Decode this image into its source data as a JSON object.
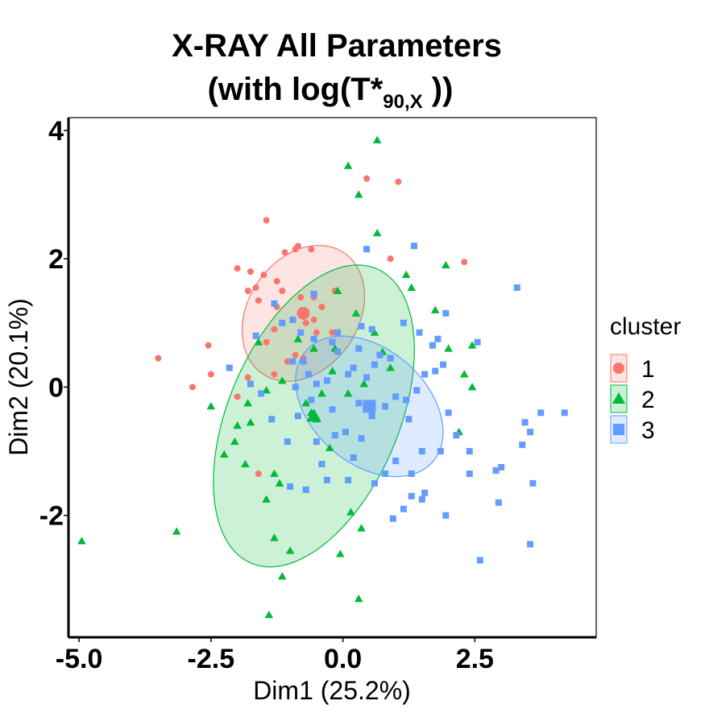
{
  "chart_data": {
    "type": "scatter",
    "title_line1": "X-RAY All Parameters",
    "title_line2_prefix": "(with log(T*",
    "title_line2_sub": "90,X",
    "title_line2_suffix": " ))",
    "xlabel": "Dim1 (25.2%)",
    "ylabel": "Dim2 (20.1%)",
    "xlim": [
      -5.2,
      4.8
    ],
    "ylim": [
      -3.9,
      4.2
    ],
    "x_ticks": [
      -5.0,
      -2.5,
      0.0,
      2.5
    ],
    "x_tick_labels": [
      "-5.0",
      "-2.5",
      "0.0",
      "2.5"
    ],
    "y_ticks": [
      -2,
      0,
      2,
      4
    ],
    "y_tick_labels": [
      "-2",
      "0",
      "2",
      "4"
    ],
    "grid": false,
    "legend": {
      "title": "cluster",
      "placement": "right",
      "items": [
        {
          "label": "1",
          "color": "#F8766D",
          "marker": "circle"
        },
        {
          "label": "2",
          "color": "#00BA38",
          "marker": "triangle"
        },
        {
          "label": "3",
          "color": "#619CFF",
          "marker": "square"
        }
      ]
    },
    "series": [
      {
        "cluster": "1",
        "color": "#F8766D",
        "marker": "circle",
        "centroid": [
          -0.75,
          1.15
        ],
        "ellipse": {
          "cx": -0.75,
          "cy": 1.15,
          "a": 1.25,
          "b": 0.95,
          "angle_deg": 35
        },
        "points": [
          [
            -1.45,
            2.6
          ],
          [
            -1.1,
            2.1
          ],
          [
            -0.9,
            2.15
          ],
          [
            -0.85,
            2.2
          ],
          [
            -0.6,
            2.15
          ],
          [
            -2.0,
            1.85
          ],
          [
            -1.75,
            1.8
          ],
          [
            -1.5,
            1.75
          ],
          [
            -1.25,
            1.65
          ],
          [
            -1.15,
            1.5
          ],
          [
            -1.8,
            1.5
          ],
          [
            -1.65,
            1.55
          ],
          [
            -1.6,
            1.35
          ],
          [
            -1.25,
            1.25
          ],
          [
            -0.8,
            1.4
          ],
          [
            -0.55,
            1.4
          ],
          [
            -0.4,
            1.25
          ],
          [
            -0.55,
            1.05
          ],
          [
            -0.7,
            1.0
          ],
          [
            -0.75,
            1.15
          ],
          [
            -0.5,
            0.85
          ],
          [
            -1.3,
            0.9
          ],
          [
            -1.45,
            0.7
          ],
          [
            -0.2,
            0.85
          ],
          [
            -1.05,
            0.4
          ],
          [
            -2.55,
            0.65
          ],
          [
            -3.5,
            0.45
          ],
          [
            -2.5,
            0.2
          ],
          [
            -2.85,
            0.0
          ],
          [
            -2.0,
            -0.15
          ],
          [
            -1.8,
            0.15
          ],
          [
            -1.3,
            0.2
          ],
          [
            -0.9,
            0.5
          ],
          [
            -1.6,
            -1.35
          ],
          [
            0.45,
            3.25
          ],
          [
            1.05,
            3.2
          ],
          [
            0.9,
            2.0
          ],
          [
            2.3,
            1.95
          ],
          [
            -0.75,
            0.45
          ],
          [
            -0.15,
            1.5
          ]
        ]
      },
      {
        "cluster": "2",
        "color": "#00BA38",
        "marker": "triangle",
        "centroid": [
          -0.55,
          -0.45
        ],
        "ellipse": {
          "cx": -0.55,
          "cy": -0.45,
          "a": 2.6,
          "b": 1.55,
          "angle_deg": 58
        },
        "points": [
          [
            0.65,
            3.85
          ],
          [
            0.1,
            3.45
          ],
          [
            0.3,
            3.0
          ],
          [
            0.65,
            2.4
          ],
          [
            1.2,
            1.75
          ],
          [
            1.3,
            1.55
          ],
          [
            1.95,
            1.9
          ],
          [
            1.75,
            1.2
          ],
          [
            2.0,
            0.6
          ],
          [
            2.45,
            0.65
          ],
          [
            2.3,
            0.2
          ],
          [
            2.45,
            0.0
          ],
          [
            -0.1,
            1.5
          ],
          [
            0.25,
            1.15
          ],
          [
            0.6,
            0.85
          ],
          [
            0.75,
            0.55
          ],
          [
            0.9,
            0.3
          ],
          [
            0.4,
            0.05
          ],
          [
            0.1,
            -0.1
          ],
          [
            -0.2,
            0.25
          ],
          [
            -0.55,
            0.6
          ],
          [
            -0.85,
            0.75
          ],
          [
            -1.15,
            0.1
          ],
          [
            -1.45,
            -0.05
          ],
          [
            -1.8,
            -0.25
          ],
          [
            -1.75,
            -0.55
          ],
          [
            -2.0,
            -0.6
          ],
          [
            -2.05,
            -0.85
          ],
          [
            -2.25,
            -1.05
          ],
          [
            -1.85,
            -1.2
          ],
          [
            -0.6,
            -0.4
          ],
          [
            -0.5,
            -0.5
          ],
          [
            -0.7,
            -0.25
          ],
          [
            -0.25,
            -0.95
          ],
          [
            -1.3,
            -1.35
          ],
          [
            -1.2,
            -1.5
          ],
          [
            -1.45,
            -1.75
          ],
          [
            -1.3,
            -2.35
          ],
          [
            -1.0,
            -2.55
          ],
          [
            -0.05,
            -2.6
          ],
          [
            0.15,
            -1.95
          ],
          [
            0.35,
            -2.2
          ],
          [
            -2.5,
            -0.3
          ],
          [
            -3.15,
            -2.25
          ],
          [
            -4.95,
            -2.4
          ],
          [
            -1.15,
            -2.95
          ],
          [
            0.3,
            -3.3
          ],
          [
            -1.4,
            -3.55
          ],
          [
            -0.4,
            -0.1
          ],
          [
            -1.6,
            0.7
          ],
          [
            2.2,
            -0.7
          ],
          [
            -0.15,
            0.6
          ]
        ]
      },
      {
        "cluster": "3",
        "color": "#619CFF",
        "marker": "square",
        "centroid": [
          0.5,
          -0.3
        ],
        "ellipse": {
          "cx": 0.5,
          "cy": -0.3,
          "a": 1.5,
          "b": 0.95,
          "angle_deg": -28
        },
        "points": [
          [
            0.45,
            2.15
          ],
          [
            -0.55,
            1.45
          ],
          [
            -1.3,
            1.3
          ],
          [
            -0.95,
            1.05
          ],
          [
            -0.8,
            0.85
          ],
          [
            -1.65,
            0.8
          ],
          [
            -1.15,
            1.0
          ],
          [
            -0.55,
            0.75
          ],
          [
            -0.2,
            0.7
          ],
          [
            -0.1,
            0.55
          ],
          [
            0.3,
            0.6
          ],
          [
            0.7,
            0.5
          ],
          [
            0.9,
            0.45
          ],
          [
            0.2,
            0.3
          ],
          [
            0.6,
            0.35
          ],
          [
            0.45,
            0.15
          ],
          [
            0.1,
            0.2
          ],
          [
            -0.3,
            0.1
          ],
          [
            -0.5,
            0.05
          ],
          [
            -0.75,
            0.4
          ],
          [
            -0.65,
            0.2
          ],
          [
            -0.9,
            0.0
          ],
          [
            -0.6,
            -0.2
          ],
          [
            -0.2,
            -0.35
          ],
          [
            0.3,
            -0.25
          ],
          [
            0.55,
            -0.45
          ],
          [
            0.8,
            -0.3
          ],
          [
            1.0,
            -0.15
          ],
          [
            1.2,
            -0.2
          ],
          [
            1.4,
            -0.05
          ],
          [
            1.55,
            0.2
          ],
          [
            1.9,
            0.35
          ],
          [
            1.45,
            0.85
          ],
          [
            1.15,
            1.0
          ],
          [
            1.8,
            0.75
          ],
          [
            1.75,
            0.25
          ],
          [
            2.0,
            -0.4
          ],
          [
            2.15,
            -0.75
          ],
          [
            2.4,
            -1.0
          ],
          [
            2.9,
            -1.3
          ],
          [
            3.0,
            -1.25
          ],
          [
            3.4,
            -0.9
          ],
          [
            3.55,
            -0.7
          ],
          [
            3.45,
            -0.55
          ],
          [
            3.75,
            -0.4
          ],
          [
            4.2,
            -0.4
          ],
          [
            3.6,
            -1.5
          ],
          [
            3.55,
            -2.45
          ],
          [
            2.95,
            -1.8
          ],
          [
            2.6,
            -2.7
          ],
          [
            1.95,
            -2.0
          ],
          [
            1.55,
            -1.65
          ],
          [
            1.3,
            -1.35
          ],
          [
            1.0,
            -1.15
          ],
          [
            0.8,
            -1.35
          ],
          [
            0.6,
            -1.5
          ],
          [
            1.15,
            -1.9
          ],
          [
            1.5,
            -1.75
          ],
          [
            0.95,
            -2.05
          ],
          [
            1.3,
            -1.7
          ],
          [
            -0.7,
            -1.6
          ],
          [
            -1.0,
            -1.55
          ],
          [
            -0.3,
            -1.45
          ],
          [
            -1.05,
            -0.85
          ],
          [
            -0.5,
            -0.85
          ],
          [
            0.05,
            -0.7
          ],
          [
            0.35,
            -0.8
          ],
          [
            1.35,
            2.2
          ],
          [
            1.95,
            1.15
          ],
          [
            3.3,
            1.55
          ],
          [
            2.55,
            0.7
          ],
          [
            1.7,
            0.65
          ],
          [
            -1.35,
            -0.5
          ],
          [
            -1.75,
            0.05
          ],
          [
            -0.15,
            -0.75
          ],
          [
            -0.4,
            -1.2
          ],
          [
            0.1,
            -1.45
          ],
          [
            2.4,
            -1.35
          ],
          [
            1.85,
            -1.0
          ],
          [
            1.25,
            -0.5
          ],
          [
            1.5,
            -1.0
          ],
          [
            0.2,
            -1.1
          ],
          [
            -0.1,
            0.85
          ],
          [
            0.55,
            0.9
          ],
          [
            -0.95,
            0.4
          ],
          [
            -2.15,
            0.3
          ],
          [
            -1.55,
            -0.1
          ],
          [
            -0.85,
            -0.45
          ],
          [
            0.35,
            0.95
          ]
        ]
      }
    ]
  }
}
